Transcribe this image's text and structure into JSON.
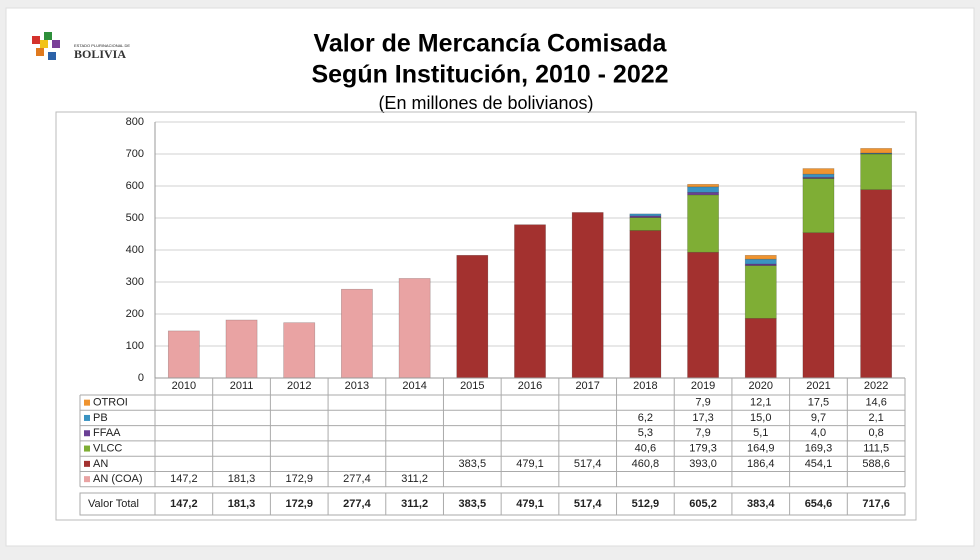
{
  "logo": {
    "small": "ESTADO PLURINACIONAL DE",
    "name": "BOLIVIA"
  },
  "chart_data": {
    "type": "stacked-bar",
    "title": "Valor de Mercancía Comisada",
    "title2": "Según Institución, 2010 - 2022",
    "subtitle": "(En millones de bolivianos)",
    "categories": [
      "2010",
      "2011",
      "2012",
      "2013",
      "2014",
      "2015",
      "2016",
      "2017",
      "2018",
      "2019",
      "2020",
      "2021",
      "2022"
    ],
    "ylim": [
      0,
      800
    ],
    "yticks": [
      0,
      100,
      200,
      300,
      400,
      500,
      600,
      700,
      800
    ],
    "grid": true,
    "series": [
      {
        "name": "AN (COA)",
        "color": "#e9a3a3",
        "values": [
          147.2,
          181.3,
          172.9,
          277.4,
          311.2,
          null,
          null,
          null,
          null,
          null,
          null,
          null,
          null
        ],
        "value_labels": [
          "147,2",
          "181,3",
          "172,9",
          "277,4",
          "311,2",
          null,
          null,
          null,
          null,
          null,
          null,
          null,
          null
        ]
      },
      {
        "name": "AN",
        "color": "#a3312f",
        "values": [
          null,
          null,
          null,
          null,
          null,
          383.5,
          479.1,
          517.4,
          460.8,
          393.0,
          186.4,
          454.1,
          588.6
        ],
        "value_labels": [
          null,
          null,
          null,
          null,
          null,
          "383,5",
          "479,1",
          "517,4",
          "460,8",
          "393,0",
          "186,4",
          "454,1",
          "588,6"
        ]
      },
      {
        "name": "VLCC",
        "color": "#7fae35",
        "values": [
          null,
          null,
          null,
          null,
          null,
          null,
          null,
          null,
          40.6,
          179.3,
          164.9,
          169.3,
          111.5
        ],
        "value_labels": [
          null,
          null,
          null,
          null,
          null,
          null,
          null,
          null,
          "40,6",
          "179,3",
          "164,9",
          "169,3",
          "111,5"
        ]
      },
      {
        "name": "FFAA",
        "color": "#6a3f95",
        "values": [
          null,
          null,
          null,
          null,
          null,
          null,
          null,
          null,
          5.3,
          7.9,
          5.1,
          4.0,
          0.8
        ],
        "value_labels": [
          null,
          null,
          null,
          null,
          null,
          null,
          null,
          null,
          "5,3",
          "7,9",
          "5,1",
          "4,0",
          "0,8"
        ]
      },
      {
        "name": "PB",
        "color": "#3a93c2",
        "values": [
          null,
          null,
          null,
          null,
          null,
          null,
          null,
          null,
          6.2,
          17.3,
          15.0,
          9.7,
          2.1
        ],
        "value_labels": [
          null,
          null,
          null,
          null,
          null,
          null,
          null,
          null,
          "6,2",
          "17,3",
          "15,0",
          "9,7",
          "2,1"
        ]
      },
      {
        "name": "OTROI",
        "color": "#ef9430",
        "values": [
          null,
          null,
          null,
          null,
          null,
          null,
          null,
          null,
          null,
          7.9,
          12.1,
          17.5,
          14.6
        ],
        "value_labels": [
          null,
          null,
          null,
          null,
          null,
          null,
          null,
          null,
          null,
          "7,9",
          "12,1",
          "17,5",
          "14,6"
        ]
      }
    ],
    "totals": {
      "name": "Valor Total",
      "values": [
        147.2,
        181.3,
        172.9,
        277.4,
        311.2,
        383.5,
        479.1,
        517.4,
        512.9,
        605.2,
        383.4,
        654.6,
        717.6
      ],
      "value_labels": [
        "147,2",
        "181,3",
        "172,9",
        "277,4",
        "311,2",
        "383,5",
        "479,1",
        "517,4",
        "512,9",
        "605,2",
        "383,4",
        "654,6",
        "717,6"
      ]
    }
  }
}
